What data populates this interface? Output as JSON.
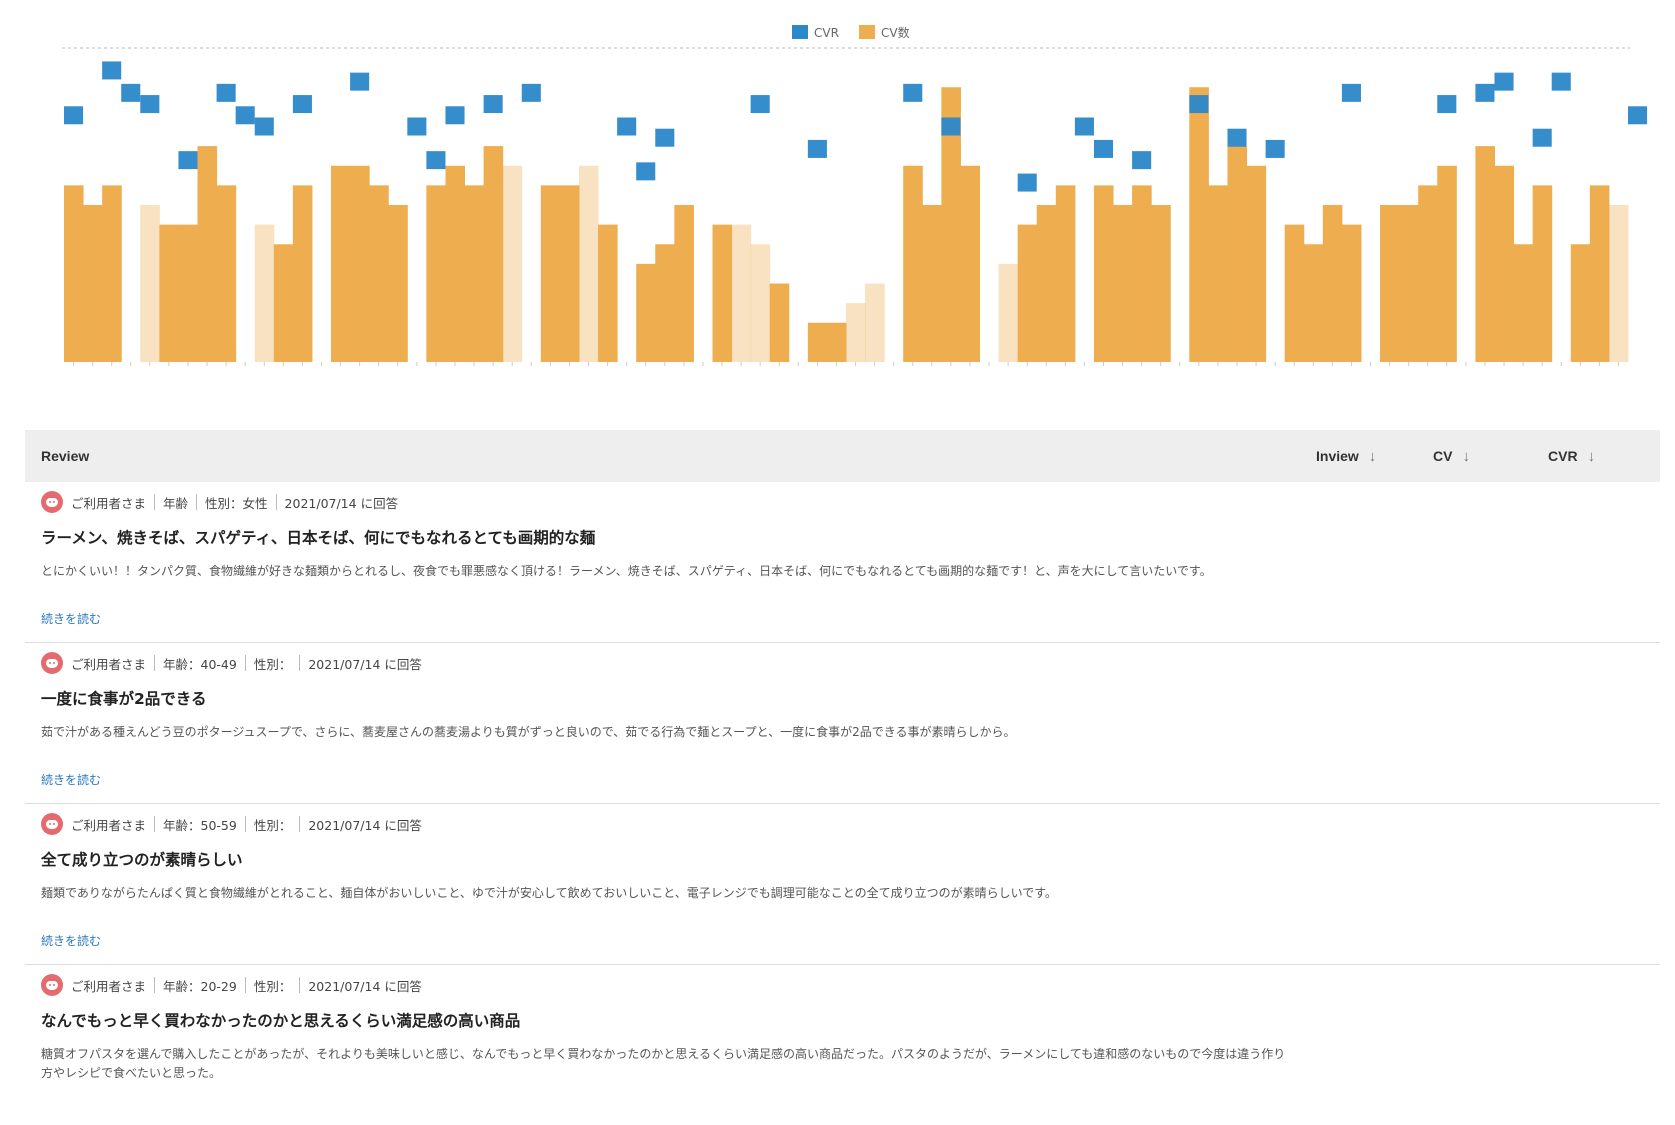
{
  "chart_data": {
    "type": "bar",
    "legend": [
      {
        "name": "CVR",
        "color": "#2b87c9"
      },
      {
        "name": "CV数",
        "color": "#eead4e"
      }
    ],
    "legend_position": "top-center",
    "grid": "dashed top line only",
    "series": [
      {
        "name": "CV数",
        "axis": "right",
        "values": [
          18,
          16,
          18,
          0,
          16,
          14,
          14,
          22,
          18,
          0,
          14,
          12,
          18,
          0,
          20,
          20,
          18,
          16,
          0,
          18,
          20,
          18,
          22,
          20,
          0,
          18,
          18,
          20,
          14,
          0,
          10,
          12,
          16,
          0,
          14,
          14,
          12,
          8,
          0,
          4,
          4,
          6,
          8,
          0,
          20,
          16,
          28,
          20,
          0,
          10,
          14,
          16,
          18,
          0,
          18,
          16,
          18,
          16,
          0,
          28,
          18,
          22,
          20,
          0,
          14,
          12,
          16,
          14,
          0,
          16,
          16,
          18,
          20,
          0,
          22,
          20,
          12,
          18,
          0,
          12,
          18,
          16
        ],
        "faded": [
          4,
          9,
          10,
          13,
          23,
          27,
          35,
          36,
          41,
          42,
          43,
          49,
          81
        ]
      },
      {
        "name": "CVR",
        "axis": "left",
        "values": [
          11,
          null,
          13,
          12,
          11.5,
          null,
          9,
          null,
          12,
          11,
          10.5,
          null,
          11.5,
          null,
          null,
          12.5,
          null,
          null,
          10.5,
          9,
          11,
          null,
          11.5,
          null,
          12,
          null,
          null,
          null,
          null,
          10.5,
          8.5,
          10,
          null,
          null,
          null,
          null,
          11.5,
          null,
          null,
          9.5,
          null,
          null,
          null,
          null,
          12,
          null,
          10.5,
          null,
          null,
          null,
          8,
          null,
          null,
          10.5,
          9.5,
          null,
          9,
          null,
          null,
          11.5,
          null,
          10,
          null,
          9.5,
          null,
          null,
          null,
          12,
          null,
          null,
          null,
          null,
          11.5,
          null,
          12,
          12.5,
          null,
          10,
          12.5,
          null,
          null,
          null,
          11
        ]
      }
    ],
    "x_tick_count": 82
  },
  "table": {
    "headers": {
      "review": "Review",
      "inview": "Inview",
      "cv": "CV",
      "cvr": "CVR"
    },
    "rows": [
      {
        "user": "ご利用者さま",
        "age_label": "年齢",
        "gender_label": "性別：女性",
        "answered": "2021/07/14 に回答",
        "title": "ラーメン、焼きそば、スパゲティ、日本そば、何にでもなれるとても画期的な麺",
        "body": "とにかくいい！！タンパク質、食物繊維が好きな麺類からとれるし、夜食でも罪悪感なく頂ける！ラーメン、焼きそば、スパゲティ、日本そば、何にでもなれるとても画期的な麺です！と、声を大にして言いたいです。",
        "read_more": "続きを読む"
      },
      {
        "user": "ご利用者さま",
        "age_label": "年齢：40-49",
        "gender_label": "性別：",
        "answered": "2021/07/14 に回答",
        "title": "一度に食事が2品できる",
        "body": "茹で汁がある種えんどう豆のポタージュスープで、さらに、蕎麦屋さんの蕎麦湯よりも質がずっと良いので、茹でる行為で麺とスープと、一度に食事が2品できる事が素晴らしから。",
        "read_more": "続きを読む"
      },
      {
        "user": "ご利用者さま",
        "age_label": "年齢：50-59",
        "gender_label": "性別：",
        "answered": "2021/07/14 に回答",
        "title": "全て成り立つのが素晴らしい",
        "body": "麺類でありながらたんぱく質と食物繊維がとれること、麺自体がおいしいこと、ゆで汁が安心して飲めておいしいこと、電子レンジでも調理可能なことの全て成り立つのが素晴らしいです。",
        "read_more": "続きを読む"
      },
      {
        "user": "ご利用者さま",
        "age_label": "年齢：20-29",
        "gender_label": "性別：",
        "answered": "2021/07/14 に回答",
        "title": "なんでもっと早く買わなかったのかと思えるくらい満足感の高い商品",
        "body": "糖質オフパスタを選んで購入したことがあったが、それよりも美味しいと感じ、なんでもっと早く買わなかったのかと思えるくらい満足感の高い商品だった。パスタのようだが、ラーメンにしても違和感のないもので今度は違う作り方やレシピで食べたいと思った。",
        "read_more": ""
      }
    ]
  }
}
